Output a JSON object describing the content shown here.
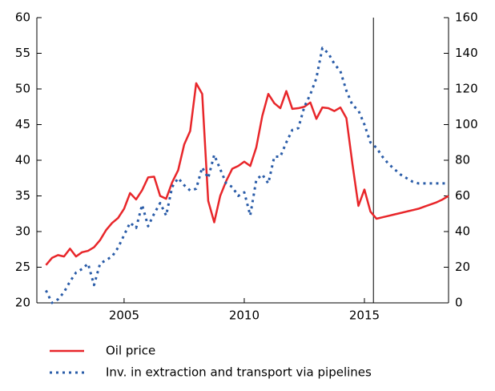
{
  "chart_data": {
    "type": "line",
    "x": [
      2001.75,
      2002,
      2002.25,
      2002.5,
      2002.75,
      2003,
      2003.25,
      2003.5,
      2003.75,
      2004,
      2004.25,
      2004.5,
      2004.75,
      2005,
      2005.25,
      2005.5,
      2005.75,
      2006,
      2006.25,
      2006.5,
      2006.75,
      2007,
      2007.25,
      2007.5,
      2007.75,
      2008,
      2008.25,
      2008.5,
      2008.75,
      2009,
      2009.25,
      2009.5,
      2009.75,
      2010,
      2010.25,
      2010.5,
      2010.75,
      2011,
      2011.25,
      2011.5,
      2011.75,
      2012,
      2012.25,
      2012.5,
      2012.75,
      2013,
      2013.25,
      2013.5,
      2013.75,
      2014,
      2014.25,
      2014.5,
      2014.75,
      2015,
      2015.25,
      2015.5,
      2015.75,
      2016,
      2016.25,
      2016.5,
      2016.75,
      2017,
      2017.25,
      2017.5,
      2017.75,
      2018,
      2018.25,
      2018.5
    ],
    "series": [
      {
        "name": "Oil price",
        "color": "#e8262a",
        "style": "solid",
        "values": [
          25.3,
          26.3,
          26.7,
          26.5,
          27.6,
          26.5,
          27.1,
          27.3,
          27.8,
          28.8,
          30.2,
          31.2,
          31.9,
          33.2,
          35.4,
          34.5,
          35.8,
          37.6,
          37.7,
          35.0,
          34.6,
          36.9,
          38.6,
          42.2,
          44.1,
          50.8,
          49.3,
          34.3,
          31.3,
          35.0,
          37.1,
          38.8,
          39.2,
          39.8,
          39.2,
          41.8,
          46.2,
          49.3,
          48.0,
          47.3,
          49.7,
          47.2,
          47.3,
          47.5,
          48.1,
          45.8,
          47.4,
          47.3,
          46.9,
          47.4,
          45.9,
          39.5,
          33.6,
          35.9,
          32.8,
          31.8,
          32.0,
          32.2,
          32.4,
          32.6,
          32.8,
          33.0,
          33.2,
          33.5,
          33.8,
          34.1,
          34.5,
          35.0
        ]
      },
      {
        "name": "Inv. in extraction and transport via pipelines",
        "color": "#2a5ca8",
        "style": "dotted",
        "axis": "y2",
        "values": [
          7,
          0,
          2,
          6,
          12,
          17,
          19,
          22,
          10,
          22,
          24,
          26,
          31,
          38,
          45,
          42,
          55,
          43,
          50,
          56,
          49,
          65,
          70,
          66,
          63,
          64,
          76,
          70,
          83,
          75,
          67,
          65,
          60,
          62,
          49,
          69,
          72,
          67,
          82,
          82,
          90,
          97,
          98,
          110,
          117,
          126,
          143,
          140,
          134,
          130,
          119,
          111,
          108,
          100,
          90,
          87,
          82,
          78,
          75,
          72,
          70,
          68,
          67,
          67,
          67,
          67,
          67,
          67
        ]
      }
    ],
    "xlim": [
      2001.37,
      2018.5
    ],
    "xticks": [
      2005,
      2010,
      2015
    ],
    "ylim": [
      20,
      60
    ],
    "yticks": [
      20,
      25,
      30,
      35,
      40,
      45,
      50,
      55,
      60
    ],
    "y2lim": [
      0,
      160
    ],
    "y2ticks": [
      0,
      20,
      40,
      60,
      80,
      100,
      120,
      140,
      160
    ],
    "vline": 2015.375,
    "grid": false
  }
}
